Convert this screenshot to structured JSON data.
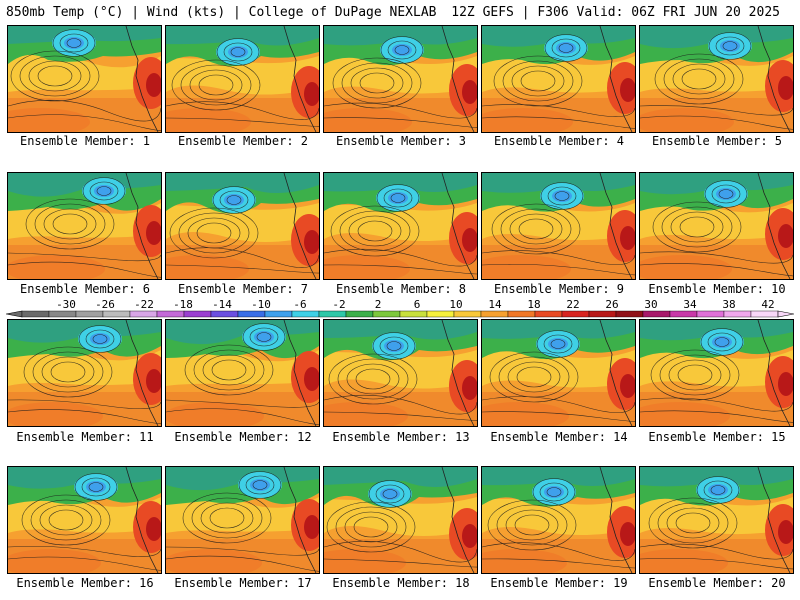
{
  "header": {
    "left": "850mb Temp (°C) | Wind (kts) | College of DuPage NEXLAB",
    "right": "12Z GEFS | F306 Valid: 06Z FRI JUN 20 2025"
  },
  "members": [
    {
      "label": "Ensemble Member: 1"
    },
    {
      "label": "Ensemble Member: 2"
    },
    {
      "label": "Ensemble Member: 3"
    },
    {
      "label": "Ensemble Member: 4"
    },
    {
      "label": "Ensemble Member: 5"
    },
    {
      "label": "Ensemble Member: 6"
    },
    {
      "label": "Ensemble Member: 7"
    },
    {
      "label": "Ensemble Member: 8"
    },
    {
      "label": "Ensemble Member: 9"
    },
    {
      "label": "Ensemble Member: 10"
    },
    {
      "label": "Ensemble Member: 11"
    },
    {
      "label": "Ensemble Member: 12"
    },
    {
      "label": "Ensemble Member: 13"
    },
    {
      "label": "Ensemble Member: 14"
    },
    {
      "label": "Ensemble Member: 15"
    },
    {
      "label": "Ensemble Member: 16"
    },
    {
      "label": "Ensemble Member: 17"
    },
    {
      "label": "Ensemble Member: 18"
    },
    {
      "label": "Ensemble Member: 19"
    },
    {
      "label": "Ensemble Member: 20"
    }
  ],
  "colorbar": {
    "ticks": [
      "-30",
      "-26",
      "-22",
      "-18",
      "-14",
      "-10",
      "-6",
      "-2",
      "2",
      "6",
      "10",
      "14",
      "18",
      "22",
      "26",
      "30",
      "34",
      "38",
      "42"
    ],
    "colors": [
      "#6a6a6a",
      "#888888",
      "#a0a0a0",
      "#bcbcbc",
      "#d8a6e6",
      "#c46ad8",
      "#9b3fd0",
      "#6b4fe0",
      "#3a6ee6",
      "#3fa0ec",
      "#3fd0e6",
      "#2fc8a8",
      "#3cb04a",
      "#7cc83c",
      "#c8e03c",
      "#f6f03c",
      "#f8c83a",
      "#f6a030",
      "#f07828",
      "#e84a24",
      "#d82420",
      "#b81818",
      "#901018",
      "#a8186a",
      "#c838a8",
      "#e070d8",
      "#f0a8ec",
      "#f8d8f8"
    ]
  }
}
